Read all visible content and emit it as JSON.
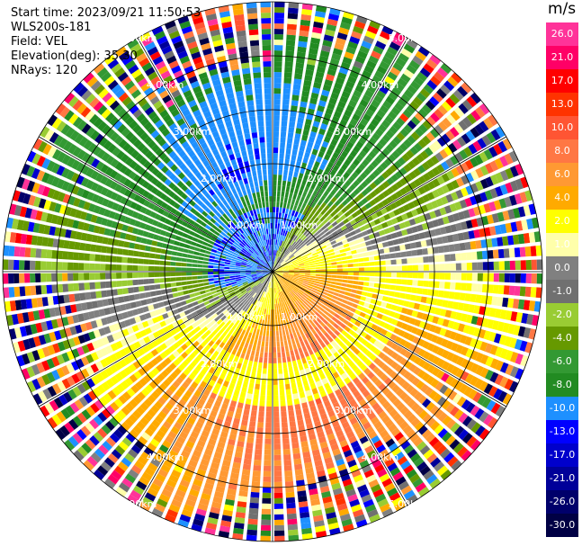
{
  "chart_data": {
    "type": "heatmap",
    "projection": "polar (PPI)",
    "info_lines": [
      "Start time: 2023/09/21 11:50:53",
      "WLS200s-181",
      "Field: VEL",
      "Elevation(deg): 35.30",
      "NRays: 120"
    ],
    "range_rings_km": [
      1.0,
      2.0,
      3.0,
      4.0,
      5.0
    ],
    "range_ring_labels": [
      "1.00km",
      "2.00km",
      "3.00km",
      "4.00km",
      "5.00km"
    ],
    "max_range_km": 5.0,
    "n_rays": 120,
    "spoke_azimuths_deg": [
      0,
      30,
      60,
      90,
      120,
      150,
      180,
      210,
      240,
      270,
      300,
      330
    ],
    "colorbar": {
      "unit": "m/s",
      "ticks": [
        "26.0",
        "21.0",
        "17.0",
        "13.0",
        "10.0",
        "8.0",
        "6.0",
        "4.0",
        "2.0",
        "1.0",
        "0.0",
        "-1.0",
        "-2.0",
        "-4.0",
        "-6.0",
        "-8.0",
        "-10.0",
        "-13.0",
        "-17.0",
        "-21.0",
        "-26.0",
        "-30.0"
      ],
      "colors": [
        "#ff3399",
        "#ff0066",
        "#ff0000",
        "#ff3300",
        "#ff5533",
        "#ff7744",
        "#ff9933",
        "#ffaa00",
        "#ffff00",
        "#ffffaa",
        "#808080",
        "#707070",
        "#99cc33",
        "#669900",
        "#339933",
        "#228b22",
        "#1e90ff",
        "#0000ff",
        "#0000cc",
        "#000099",
        "#00006b",
        "#000044"
      ]
    },
    "velocity_pattern": {
      "positive_sector_center_deg": 120,
      "negative_sector_center_deg": 300,
      "notes": "positive (orange/red) to the south-east, negative (green/blue) to the north-west; noisy returns beyond ~4 km"
    }
  }
}
